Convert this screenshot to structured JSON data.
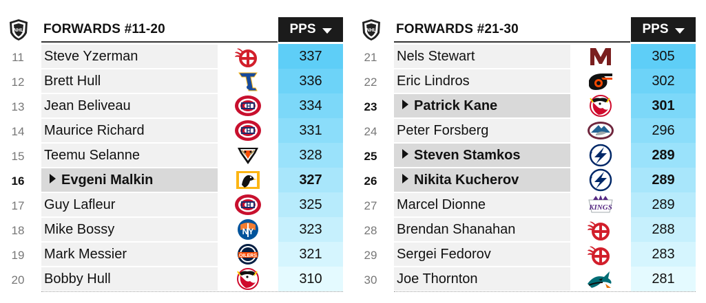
{
  "colors": {
    "header_bg": "#1b1b1b",
    "highlight_row_bg": "#d9d9d9",
    "row_bg": "#f1f1f1",
    "pps_gradient_top": "#5fd0f6",
    "pps_gradient_bottom": "#e6fbff"
  },
  "panels": [
    {
      "title": "FORWARDS #11-20",
      "pps_header": "PPS",
      "rows": [
        {
          "rank": "11",
          "name": "Steve Yzerman",
          "team_icon": "red-wings-icon",
          "pps": "337",
          "highlight": false
        },
        {
          "rank": "12",
          "name": "Brett Hull",
          "team_icon": "blues-icon",
          "pps": "336",
          "highlight": false
        },
        {
          "rank": "13",
          "name": "Jean Beliveau",
          "team_icon": "canadiens-icon",
          "pps": "334",
          "highlight": false
        },
        {
          "rank": "14",
          "name": "Maurice Richard",
          "team_icon": "canadiens-icon",
          "pps": "331",
          "highlight": false
        },
        {
          "rank": "15",
          "name": "Teemu Selanne",
          "team_icon": "ducks-icon",
          "pps": "328",
          "highlight": false
        },
        {
          "rank": "16",
          "name": "Evgeni Malkin",
          "team_icon": "penguins-icon",
          "pps": "327",
          "highlight": true
        },
        {
          "rank": "17",
          "name": "Guy Lafleur",
          "team_icon": "canadiens-icon",
          "pps": "325",
          "highlight": false
        },
        {
          "rank": "18",
          "name": "Mike Bossy",
          "team_icon": "islanders-icon",
          "pps": "323",
          "highlight": false
        },
        {
          "rank": "19",
          "name": "Mark Messier",
          "team_icon": "oilers-icon",
          "pps": "321",
          "highlight": false
        },
        {
          "rank": "20",
          "name": "Bobby Hull",
          "team_icon": "blackhawks-icon",
          "pps": "310",
          "highlight": false
        }
      ]
    },
    {
      "title": "FORWARDS #21-30",
      "pps_header": "PPS",
      "rows": [
        {
          "rank": "21",
          "name": "Nels Stewart",
          "team_icon": "maroons-icon",
          "pps": "305",
          "highlight": false
        },
        {
          "rank": "22",
          "name": "Eric Lindros",
          "team_icon": "flyers-icon",
          "pps": "302",
          "highlight": false
        },
        {
          "rank": "23",
          "name": "Patrick Kane",
          "team_icon": "blackhawks-icon",
          "pps": "301",
          "highlight": true
        },
        {
          "rank": "24",
          "name": "Peter Forsberg",
          "team_icon": "avalanche-icon",
          "pps": "296",
          "highlight": false
        },
        {
          "rank": "25",
          "name": "Steven Stamkos",
          "team_icon": "lightning-icon",
          "pps": "289",
          "highlight": true
        },
        {
          "rank": "26",
          "name": "Nikita Kucherov",
          "team_icon": "lightning-icon",
          "pps": "289",
          "highlight": true
        },
        {
          "rank": "27",
          "name": "Marcel Dionne",
          "team_icon": "kings-icon",
          "pps": "289",
          "highlight": false
        },
        {
          "rank": "28",
          "name": "Brendan Shanahan",
          "team_icon": "red-wings-icon",
          "pps": "288",
          "highlight": false
        },
        {
          "rank": "29",
          "name": "Sergei Fedorov",
          "team_icon": "red-wings-icon",
          "pps": "283",
          "highlight": false
        },
        {
          "rank": "30",
          "name": "Joe Thornton",
          "team_icon": "sharks-icon",
          "pps": "281",
          "highlight": false
        }
      ]
    }
  ]
}
